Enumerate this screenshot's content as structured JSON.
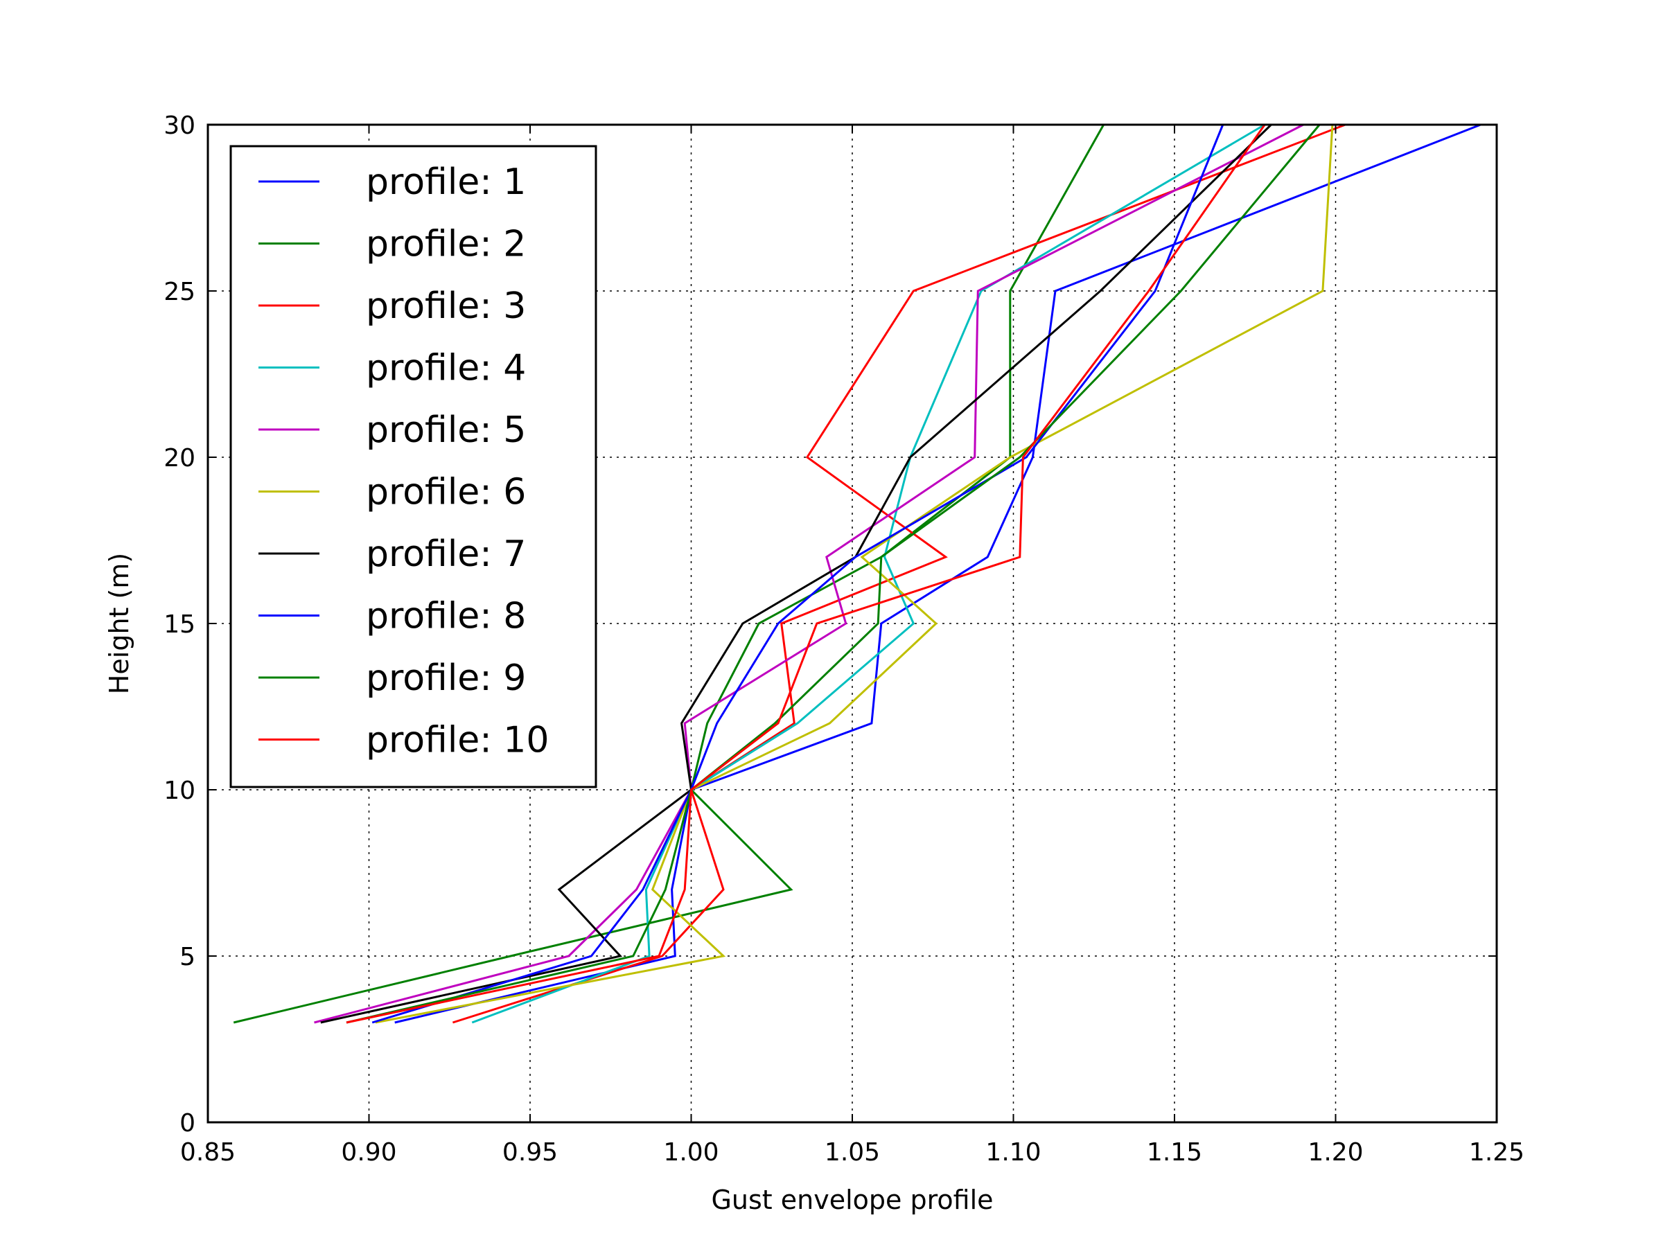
{
  "chart_data": {
    "type": "line",
    "xlabel": "Gust envelope profile",
    "ylabel": "Height (m)",
    "xlim": [
      0.85,
      1.25
    ],
    "ylim": [
      0,
      30
    ],
    "xticks": [
      "0.85",
      "0.90",
      "0.95",
      "1.00",
      "1.05",
      "1.10",
      "1.15",
      "1.20",
      "1.25"
    ],
    "yticks": [
      "0",
      "5",
      "10",
      "15",
      "20",
      "25",
      "30"
    ],
    "grid": "on (dotted)",
    "legend_position": "upper left",
    "heights": [
      3,
      5,
      7,
      10,
      12,
      15,
      17,
      20,
      25,
      30
    ],
    "series": [
      {
        "name": "profile: 1",
        "color": "#0000ff",
        "x": [
          0.908,
          0.995,
          0.994,
          1.0,
          1.056,
          1.059,
          1.092,
          1.106,
          1.113,
          1.245
        ]
      },
      {
        "name": "profile: 2",
        "color": "#008000",
        "x": [
          0.858,
          0.944,
          1.031,
          1.0,
          1.005,
          1.021,
          1.059,
          1.099,
          1.099,
          1.128
        ]
      },
      {
        "name": "profile: 3",
        "color": "#ff0000",
        "x": [
          0.926,
          0.991,
          1.01,
          1.0,
          1.032,
          1.028,
          1.079,
          1.036,
          1.069,
          1.203
        ]
      },
      {
        "name": "profile: 4",
        "color": "#00bfbf",
        "x": [
          0.932,
          0.987,
          0.986,
          1.0,
          1.033,
          1.069,
          1.06,
          1.068,
          1.09,
          1.178
        ]
      },
      {
        "name": "profile: 5",
        "color": "#bf00bf",
        "x": [
          0.883,
          0.962,
          0.983,
          1.0,
          0.998,
          1.048,
          1.042,
          1.088,
          1.089,
          1.19
        ]
      },
      {
        "name": "profile: 6",
        "color": "#bfbf00",
        "x": [
          0.902,
          1.01,
          0.988,
          1.0,
          1.043,
          1.076,
          1.053,
          1.099,
          1.196,
          1.199
        ]
      },
      {
        "name": "profile: 7",
        "color": "#000000",
        "x": [
          0.885,
          0.978,
          0.959,
          1.0,
          0.997,
          1.016,
          1.051,
          1.068,
          1.127,
          1.18
        ]
      },
      {
        "name": "profile: 8",
        "color": "#0000ff",
        "x": [
          0.901,
          0.969,
          0.985,
          1.0,
          1.008,
          1.027,
          1.051,
          1.104,
          1.144,
          1.165
        ]
      },
      {
        "name": "profile: 9",
        "color": "#008000",
        "x": [
          0.893,
          0.982,
          0.992,
          1.0,
          1.026,
          1.058,
          1.059,
          1.102,
          1.152,
          1.195
        ]
      },
      {
        "name": "profile: 10",
        "color": "#ff0000",
        "x": [
          0.893,
          0.99,
          0.998,
          1.0,
          1.027,
          1.039,
          1.102,
          1.103,
          1.142,
          1.178
        ]
      }
    ]
  }
}
